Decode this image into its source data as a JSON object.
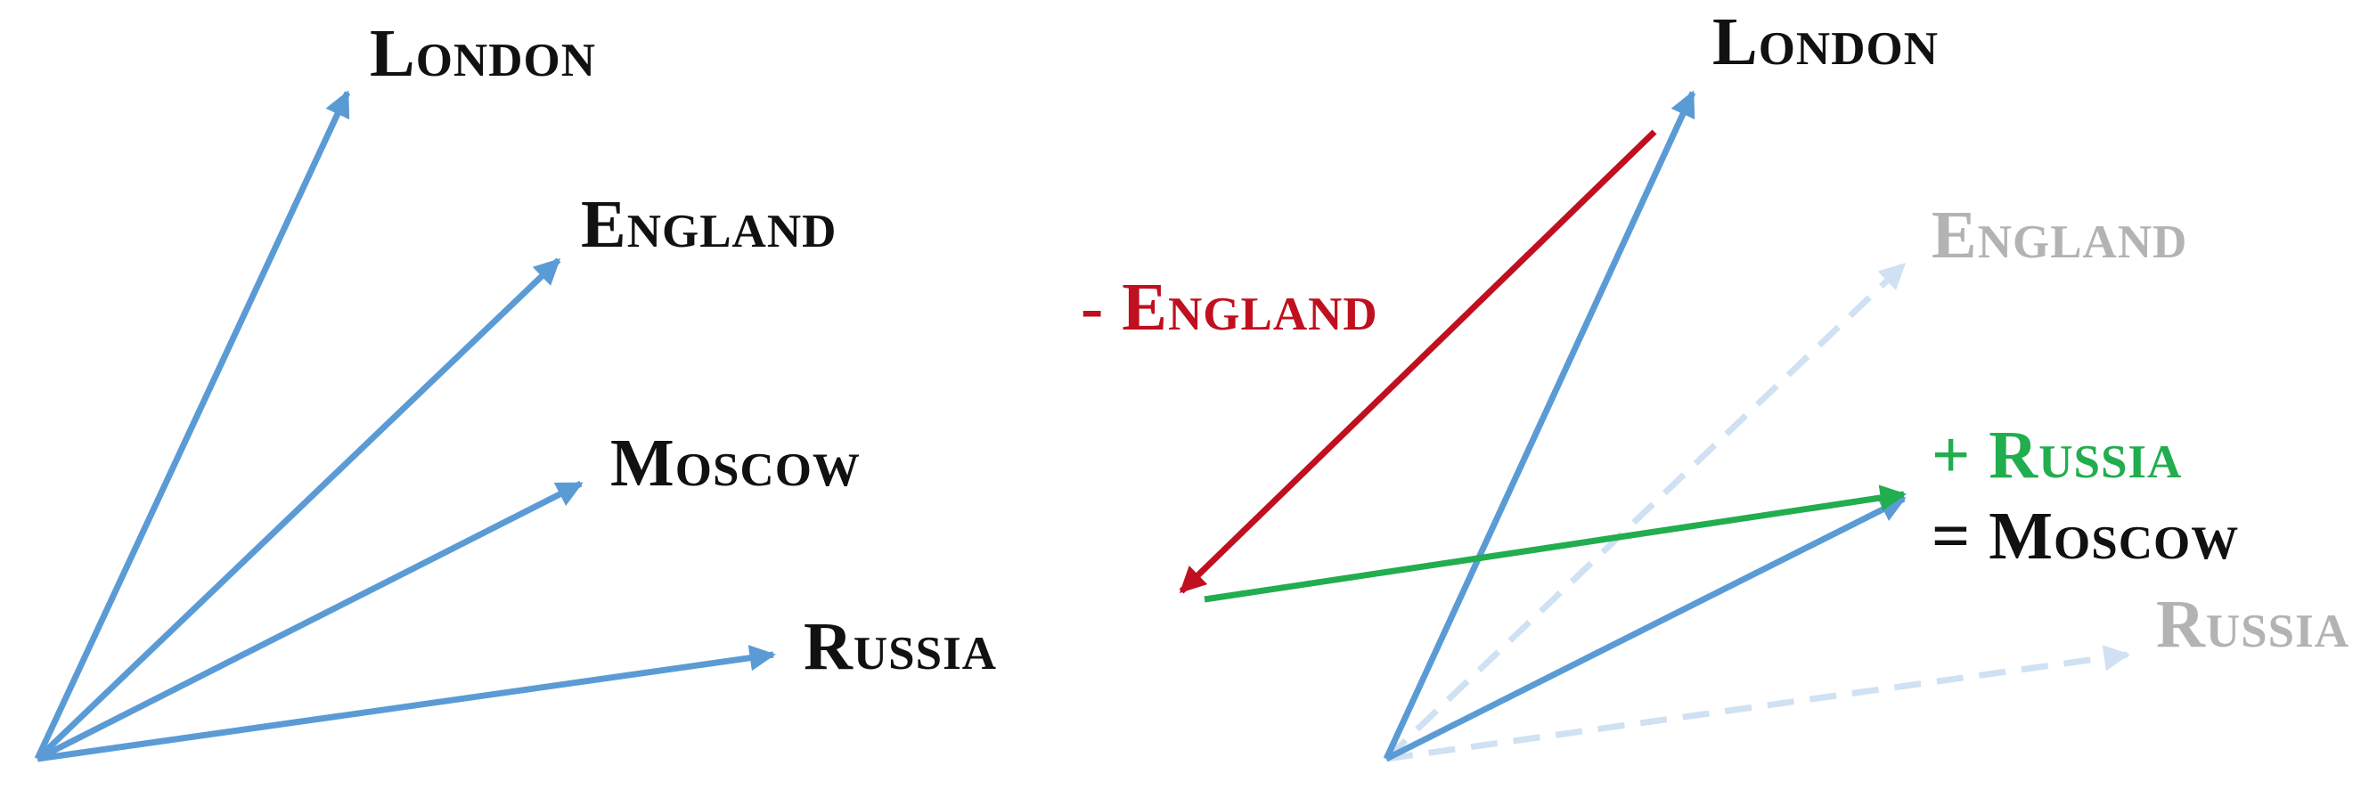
{
  "labels": {
    "left_london": "London",
    "left_england": "England",
    "left_moscow": "Moscow",
    "left_russia": "Russia",
    "right_london": "London",
    "right_england": "England",
    "right_russia": "Russia",
    "minus_england": "- England",
    "plus_russia": "+ Russia",
    "equals_moscow": "= Moscow"
  },
  "colors": {
    "vector_blue": "#5b9bd5",
    "faded_blue": "#cfe1f3",
    "subtract_red": "#c0101f",
    "add_green": "#22ad4e",
    "label_black": "#111111",
    "faded_label_gray": "#b3b3b3"
  }
}
